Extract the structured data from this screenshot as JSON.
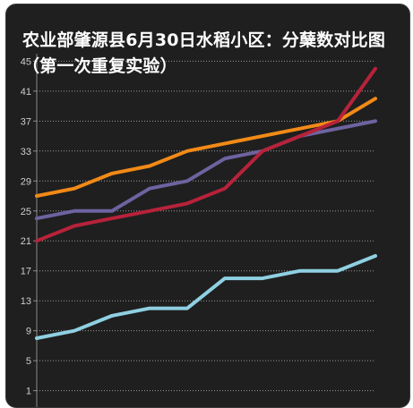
{
  "chart_data": {
    "type": "line",
    "title": "农业部肇源县6月30日水稻小区：分蘖数对比图（第一次重复实验）",
    "xlabel": "",
    "ylabel": "",
    "ylim": [
      0,
      46
    ],
    "yticks": [
      "1",
      "5",
      "9",
      "13",
      "17",
      "21",
      "25",
      "29",
      "33",
      "37",
      "41",
      "45"
    ],
    "grid": "horizontal dotted",
    "legend": "none",
    "x": [
      1,
      2,
      3,
      4,
      5,
      6,
      7,
      8,
      9,
      10
    ],
    "series": [
      {
        "color": "#f28a17",
        "values": [
          27,
          28,
          30,
          31,
          33,
          34,
          35,
          36,
          37,
          40
        ]
      },
      {
        "color": "#6e63a0",
        "values": [
          24,
          25,
          25,
          28,
          29,
          32,
          33,
          35,
          36,
          37
        ]
      },
      {
        "color": "#b7223a",
        "values": [
          21,
          23,
          24,
          25,
          26,
          28,
          33,
          35,
          37,
          44
        ]
      },
      {
        "color": "#8fd0e2",
        "values": [
          8,
          9,
          11,
          12,
          12,
          16,
          16,
          17,
          17,
          19
        ]
      }
    ]
  }
}
